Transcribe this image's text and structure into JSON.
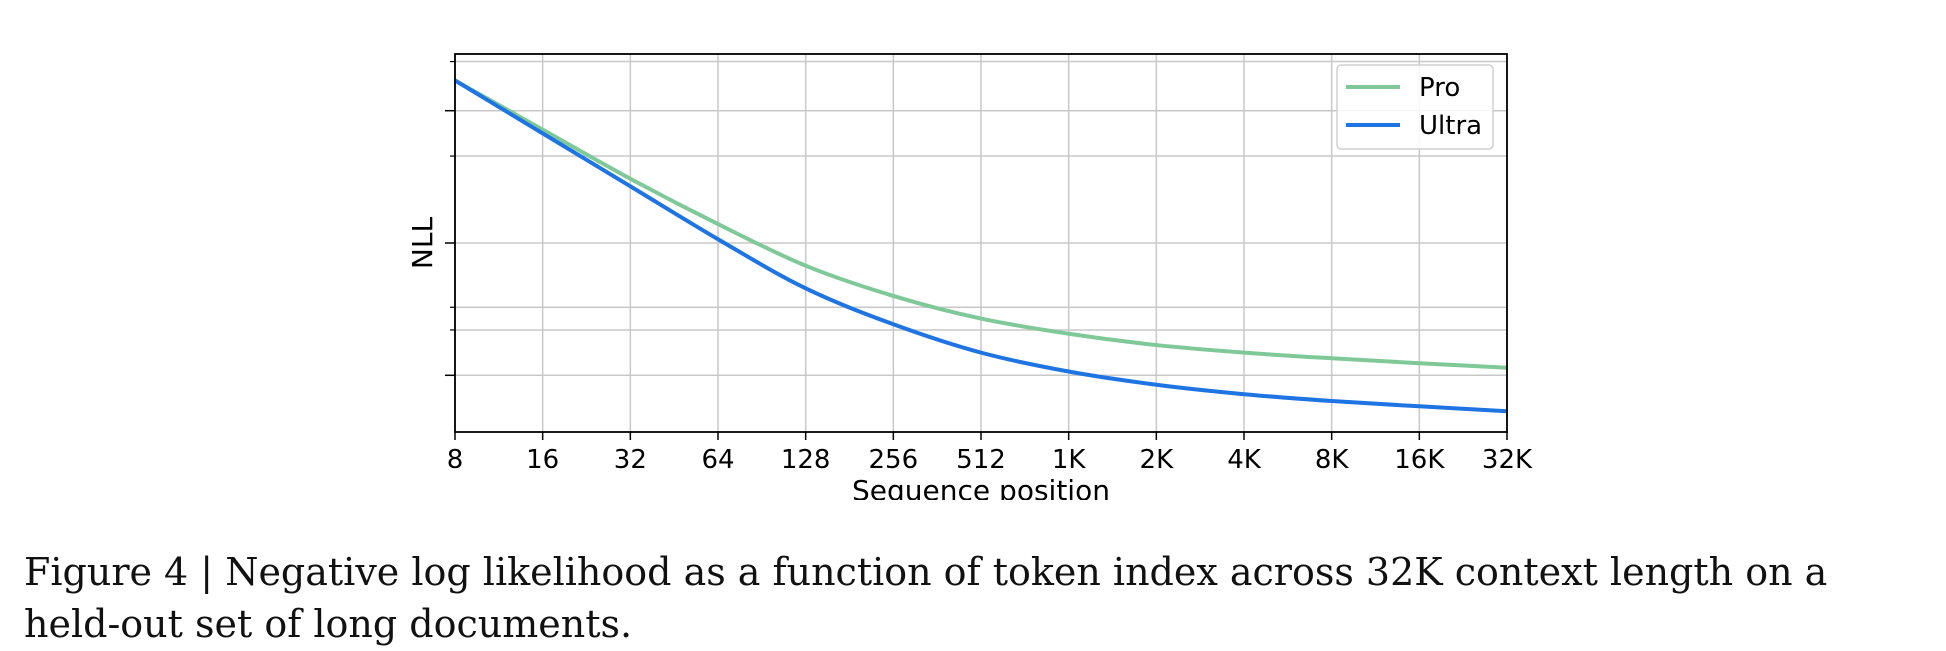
{
  "chart_data": {
    "type": "line",
    "xlabel": "Sequence position",
    "ylabel": "NLL",
    "x_scale": "log2",
    "x": [
      8,
      16,
      32,
      64,
      128,
      256,
      512,
      1024,
      2048,
      4096,
      8192,
      16384,
      32768
    ],
    "x_tick_labels": [
      "8",
      "16",
      "32",
      "64",
      "128",
      "256",
      "512",
      "1K",
      "2K",
      "4K",
      "8K",
      "16K",
      "32K"
    ],
    "y_tick_labels_shown": false,
    "ylim": [
      0.0,
      1.0
    ],
    "grid": true,
    "legend": "top-right",
    "series": [
      {
        "name": "Pro",
        "color": "#7fc998",
        "values": [
          0.93,
          0.8,
          0.67,
          0.55,
          0.44,
          0.36,
          0.3,
          0.26,
          0.23,
          0.21,
          0.195,
          0.182,
          0.17
        ]
      },
      {
        "name": "Ultra",
        "color": "#1f74e4",
        "values": [
          0.93,
          0.79,
          0.65,
          0.51,
          0.38,
          0.285,
          0.21,
          0.16,
          0.125,
          0.1,
          0.082,
          0.068,
          0.055
        ]
      }
    ]
  },
  "caption": "Figure 4 | Negative log likelihood as a function of token index across 32K context length on a held-out set of long documents."
}
